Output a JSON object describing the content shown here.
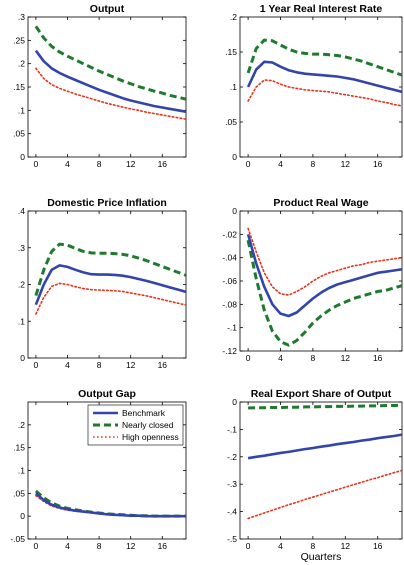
{
  "legend": {
    "entries": [
      "Benchmark",
      "Nearly closed",
      "High openness"
    ],
    "colors": [
      "#3344aa",
      "#1f7a2f",
      "#e8331c"
    ],
    "styles": [
      "solid",
      "dashed",
      "dotted"
    ],
    "placement": "top-right of Output Gap panel"
  },
  "chart_data": [
    {
      "type": "line",
      "title": "Output",
      "xlabel": "",
      "xlim": [
        -1,
        19
      ],
      "ylim": [
        0,
        0.3
      ],
      "xticks": [
        0,
        4,
        8,
        12,
        16
      ],
      "yticks": [
        0,
        0.05,
        0.1,
        0.15,
        0.2,
        0.25,
        0.3
      ],
      "x": [
        0,
        1,
        2,
        3,
        4,
        5,
        6,
        7,
        8,
        9,
        10,
        11,
        12,
        13,
        14,
        15,
        16,
        17,
        18,
        19
      ],
      "series": [
        {
          "name": "Benchmark",
          "values": [
            0.228,
            0.205,
            0.19,
            0.18,
            0.172,
            0.165,
            0.158,
            0.151,
            0.144,
            0.138,
            0.132,
            0.126,
            0.121,
            0.117,
            0.113,
            0.109,
            0.106,
            0.103,
            0.1,
            0.097
          ]
        },
        {
          "name": "Nearly closed",
          "values": [
            0.28,
            0.255,
            0.237,
            0.225,
            0.216,
            0.208,
            0.2,
            0.192,
            0.184,
            0.177,
            0.17,
            0.163,
            0.157,
            0.151,
            0.146,
            0.141,
            0.137,
            0.132,
            0.128,
            0.124
          ]
        },
        {
          "name": "High openness",
          "values": [
            0.19,
            0.168,
            0.155,
            0.147,
            0.141,
            0.135,
            0.13,
            0.125,
            0.12,
            0.115,
            0.111,
            0.107,
            0.103,
            0.1,
            0.096,
            0.093,
            0.09,
            0.087,
            0.084,
            0.081
          ]
        }
      ]
    },
    {
      "type": "line",
      "title": "1 Year Real Interest Rate",
      "xlabel": "",
      "xlim": [
        -1,
        19
      ],
      "ylim": [
        0,
        0.2
      ],
      "xticks": [
        0,
        4,
        8,
        12,
        16
      ],
      "yticks": [
        0,
        0.05,
        0.1,
        0.15,
        0.2
      ],
      "x": [
        0,
        1,
        2,
        3,
        4,
        5,
        6,
        7,
        8,
        9,
        10,
        11,
        12,
        13,
        14,
        15,
        16,
        17,
        18,
        19
      ],
      "series": [
        {
          "name": "Benchmark",
          "values": [
            0.1,
            0.125,
            0.136,
            0.135,
            0.129,
            0.124,
            0.121,
            0.119,
            0.118,
            0.117,
            0.116,
            0.115,
            0.113,
            0.111,
            0.108,
            0.105,
            0.102,
            0.099,
            0.096,
            0.093
          ]
        },
        {
          "name": "Nearly closed",
          "values": [
            0.12,
            0.155,
            0.167,
            0.166,
            0.16,
            0.154,
            0.15,
            0.148,
            0.147,
            0.147,
            0.146,
            0.145,
            0.143,
            0.14,
            0.137,
            0.133,
            0.129,
            0.125,
            0.121,
            0.117
          ]
        },
        {
          "name": "High openness",
          "values": [
            0.08,
            0.1,
            0.11,
            0.109,
            0.104,
            0.1,
            0.098,
            0.096,
            0.095,
            0.094,
            0.093,
            0.091,
            0.089,
            0.087,
            0.085,
            0.083,
            0.08,
            0.078,
            0.075,
            0.073
          ]
        }
      ]
    },
    {
      "type": "line",
      "title": "Domestic Price Inflation",
      "xlabel": "",
      "xlim": [
        -1,
        19
      ],
      "ylim": [
        0,
        0.4
      ],
      "xticks": [
        0,
        4,
        8,
        12,
        16
      ],
      "yticks": [
        0,
        0.1,
        0.2,
        0.3,
        0.4
      ],
      "x": [
        0,
        1,
        2,
        3,
        4,
        5,
        6,
        7,
        8,
        9,
        10,
        11,
        12,
        13,
        14,
        15,
        16,
        17,
        18,
        19
      ],
      "series": [
        {
          "name": "Benchmark",
          "values": [
            0.145,
            0.2,
            0.24,
            0.252,
            0.248,
            0.24,
            0.233,
            0.228,
            0.227,
            0.227,
            0.226,
            0.224,
            0.22,
            0.215,
            0.21,
            0.204,
            0.198,
            0.192,
            0.186,
            0.18
          ]
        },
        {
          "name": "Nearly closed",
          "values": [
            0.17,
            0.24,
            0.29,
            0.31,
            0.307,
            0.298,
            0.29,
            0.286,
            0.285,
            0.285,
            0.284,
            0.282,
            0.278,
            0.272,
            0.265,
            0.257,
            0.249,
            0.241,
            0.233,
            0.225
          ]
        },
        {
          "name": "High openness",
          "values": [
            0.12,
            0.165,
            0.195,
            0.203,
            0.2,
            0.194,
            0.189,
            0.186,
            0.185,
            0.184,
            0.183,
            0.181,
            0.177,
            0.173,
            0.169,
            0.164,
            0.159,
            0.154,
            0.149,
            0.144
          ]
        }
      ]
    },
    {
      "type": "line",
      "title": "Product Real Wage",
      "xlabel": "",
      "xlim": [
        -1,
        19
      ],
      "ylim": [
        -0.12,
        0
      ],
      "xticks": [
        0,
        4,
        8,
        12,
        16
      ],
      "yticks": [
        -0.12,
        -0.1,
        -0.08,
        -0.06,
        -0.04,
        -0.02,
        0
      ],
      "x": [
        0,
        1,
        2,
        3,
        4,
        5,
        6,
        7,
        8,
        9,
        10,
        11,
        12,
        13,
        14,
        15,
        16,
        17,
        18,
        19
      ],
      "series": [
        {
          "name": "Benchmark",
          "values": [
            -0.02,
            -0.045,
            -0.065,
            -0.08,
            -0.088,
            -0.09,
            -0.087,
            -0.081,
            -0.075,
            -0.07,
            -0.066,
            -0.063,
            -0.061,
            -0.059,
            -0.057,
            -0.055,
            -0.053,
            -0.052,
            -0.051,
            -0.05
          ]
        },
        {
          "name": "Nearly closed",
          "values": [
            -0.025,
            -0.058,
            -0.085,
            -0.103,
            -0.112,
            -0.115,
            -0.111,
            -0.104,
            -0.096,
            -0.09,
            -0.085,
            -0.081,
            -0.078,
            -0.075,
            -0.073,
            -0.071,
            -0.069,
            -0.068,
            -0.066,
            -0.064
          ]
        },
        {
          "name": "High openness",
          "values": [
            -0.015,
            -0.035,
            -0.053,
            -0.065,
            -0.071,
            -0.072,
            -0.069,
            -0.065,
            -0.06,
            -0.056,
            -0.053,
            -0.051,
            -0.049,
            -0.047,
            -0.046,
            -0.044,
            -0.043,
            -0.042,
            -0.041,
            -0.04
          ]
        }
      ]
    },
    {
      "type": "line",
      "title": "Output Gap",
      "xlabel": "",
      "xlim": [
        -1,
        19
      ],
      "ylim": [
        -0.05,
        0.25
      ],
      "xticks": [
        0,
        4,
        8,
        12,
        16
      ],
      "yticks": [
        -0.05,
        0,
        0.05,
        0.1,
        0.15,
        0.2
      ],
      "x": [
        0,
        1,
        2,
        3,
        4,
        5,
        6,
        7,
        8,
        9,
        10,
        11,
        12,
        13,
        14,
        15,
        16,
        17,
        18,
        19
      ],
      "series": [
        {
          "name": "Benchmark",
          "values": [
            0.05,
            0.035,
            0.025,
            0.019,
            0.015,
            0.012,
            0.01,
            0.008,
            0.006,
            0.004,
            0.003,
            0.002,
            0.001,
            0.001,
            0.0,
            0.0,
            0.0,
            0.0,
            0.0,
            0.0
          ]
        },
        {
          "name": "Nearly closed",
          "values": [
            0.055,
            0.04,
            0.029,
            0.022,
            0.017,
            0.014,
            0.011,
            0.009,
            0.007,
            0.005,
            0.004,
            0.003,
            0.002,
            0.001,
            0.001,
            0.0,
            0.0,
            0.0,
            0.0,
            0.0
          ]
        },
        {
          "name": "High openness",
          "values": [
            0.045,
            0.032,
            0.022,
            0.017,
            0.013,
            0.011,
            0.009,
            0.007,
            0.005,
            0.004,
            0.003,
            0.002,
            0.001,
            0.001,
            0.0,
            0.0,
            0.0,
            0.0,
            0.0,
            0.0
          ]
        }
      ]
    },
    {
      "type": "line",
      "title": "Real Export Share of Output",
      "xlabel": "Quarters",
      "xlim": [
        -1,
        19
      ],
      "ylim": [
        -0.5,
        0
      ],
      "xticks": [
        0,
        4,
        8,
        12,
        16
      ],
      "yticks": [
        -0.5,
        -0.4,
        -0.3,
        -0.2,
        -0.1,
        0
      ],
      "x": [
        0,
        1,
        2,
        3,
        4,
        5,
        6,
        7,
        8,
        9,
        10,
        11,
        12,
        13,
        14,
        15,
        16,
        17,
        18,
        19
      ],
      "series": [
        {
          "name": "Benchmark",
          "values": [
            -0.205,
            -0.2,
            -0.196,
            -0.191,
            -0.186,
            -0.182,
            -0.177,
            -0.172,
            -0.168,
            -0.163,
            -0.159,
            -0.154,
            -0.15,
            -0.146,
            -0.141,
            -0.137,
            -0.132,
            -0.128,
            -0.124,
            -0.119
          ]
        },
        {
          "name": "Nearly closed",
          "values": [
            -0.022,
            -0.021,
            -0.021,
            -0.02,
            -0.02,
            -0.019,
            -0.019,
            -0.018,
            -0.018,
            -0.017,
            -0.017,
            -0.016,
            -0.016,
            -0.015,
            -0.015,
            -0.014,
            -0.014,
            -0.013,
            -0.013,
            -0.012
          ]
        },
        {
          "name": "High openness",
          "values": [
            -0.425,
            -0.415,
            -0.405,
            -0.395,
            -0.385,
            -0.375,
            -0.366,
            -0.356,
            -0.347,
            -0.338,
            -0.329,
            -0.32,
            -0.311,
            -0.302,
            -0.293,
            -0.284,
            -0.276,
            -0.267,
            -0.258,
            -0.25
          ]
        }
      ]
    }
  ],
  "x_axis_labels": [
    "",
    "",
    "",
    "",
    "Quarters",
    "Quarters"
  ]
}
